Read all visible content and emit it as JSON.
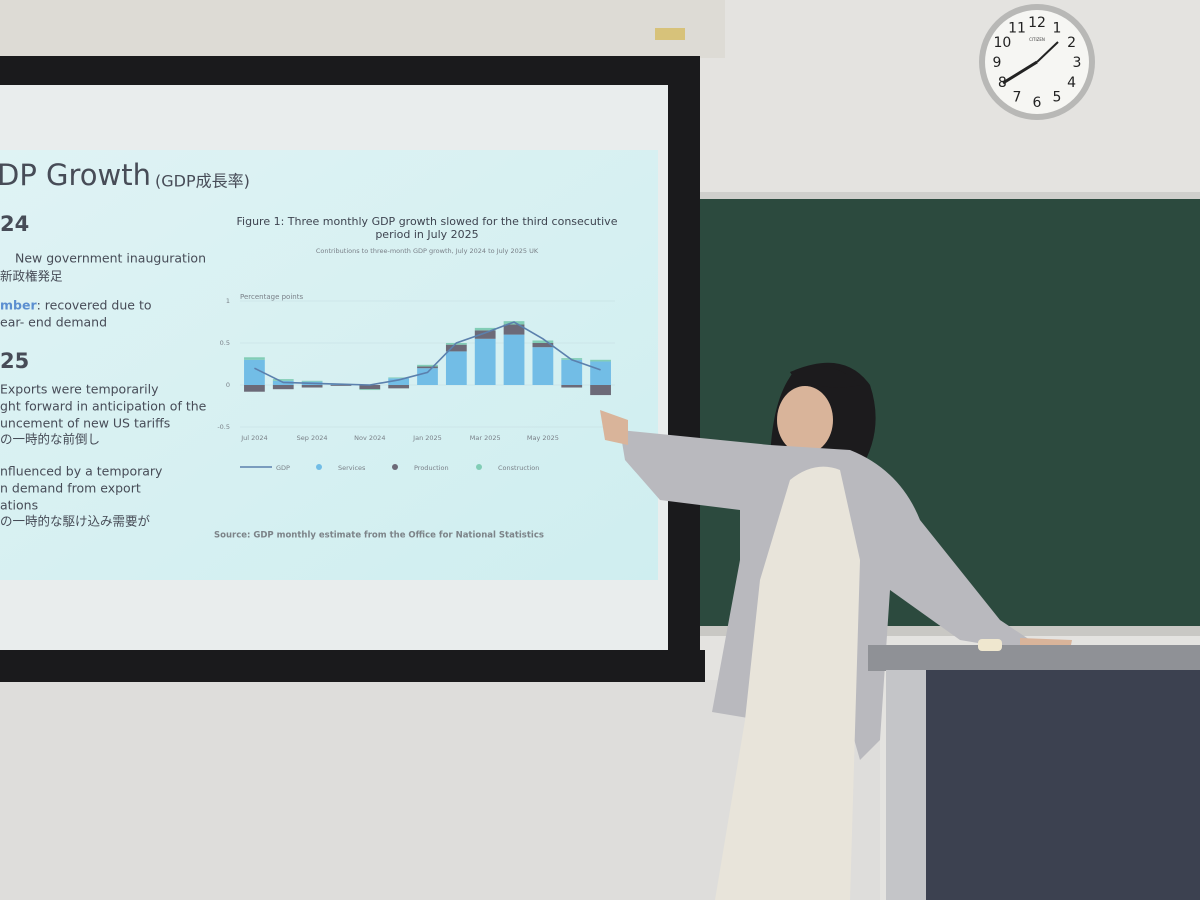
{
  "slide": {
    "title": "DP Growth",
    "title_note": "(GDP成長率)",
    "lines": [
      {
        "text": "24",
        "kind": "heading"
      },
      {
        "text": "New government inauguration",
        "kind": "item"
      },
      {
        "text": "新政権発足",
        "kind": "item"
      },
      {
        "text": "mber",
        "kind": "accent"
      },
      {
        "text": ": recovered due to",
        "kind": "item"
      },
      {
        "text": "ear- end demand",
        "kind": "item"
      },
      {
        "text": "25",
        "kind": "heading"
      },
      {
        "text": "Exports were temporarily",
        "kind": "item"
      },
      {
        "text": "ght forward in anticipation of the",
        "kind": "item"
      },
      {
        "text": "uncement of new US tariffs",
        "kind": "item"
      },
      {
        "text": "の一時的な前倒し",
        "kind": "item"
      },
      {
        "text": "nfluenced by a temporary",
        "kind": "item"
      },
      {
        "text": "n demand from export",
        "kind": "item"
      },
      {
        "text": "ations",
        "kind": "item"
      },
      {
        "text": "の一時的な駆け込み需要が",
        "kind": "item"
      }
    ],
    "source": "Source: GDP monthly estimate from the Office for National Statistics"
  },
  "chart_data": {
    "type": "stacked-bar-line",
    "title": "Figure 1: Three monthly GDP growth slowed for the third consecutive",
    "title_line2": "period in July 2025",
    "subtitle": "Contributions to three-month GDP growth, July 2024 to July 2025 UK",
    "y_label": "Percentage points",
    "categories": [
      "Jul 2024",
      null,
      "Sep 2024",
      null,
      "Nov 2024",
      null,
      "Jan 2025",
      null,
      "Mar 2025",
      null,
      "May 2025",
      null,
      null
    ],
    "ylim": [
      -0.5,
      1
    ],
    "yticks": [
      1,
      0.5,
      0,
      -0.5
    ],
    "grid": true,
    "series": [
      {
        "name": "GDP",
        "kind": "line",
        "color": "#5b80ad",
        "values": [
          0.2,
          0.03,
          0.02,
          0.01,
          0,
          0.06,
          0.15,
          0.5,
          0.62,
          0.75,
          0.55,
          0.3,
          0.18
        ]
      },
      {
        "name": "Services",
        "kind": "bar",
        "color": "#72bde6",
        "values": [
          0.3,
          0.05,
          0.04,
          0.01,
          0,
          0.08,
          0.2,
          0.4,
          0.55,
          0.6,
          0.45,
          0.3,
          0.28
        ]
      },
      {
        "name": "Production",
        "kind": "bar",
        "color": "#6c6a78",
        "values": [
          -0.08,
          -0.05,
          -0.03,
          -0.01,
          -0.05,
          -0.04,
          0.02,
          0.08,
          0.1,
          0.12,
          0.05,
          -0.03,
          -0.12
        ]
      },
      {
        "name": "Construction",
        "kind": "bar",
        "color": "#82cdb6",
        "values": [
          0.03,
          0.02,
          0.01,
          0,
          -0.01,
          0.01,
          0.02,
          0.02,
          0.03,
          0.04,
          0.03,
          0.02,
          0.02
        ]
      }
    ]
  },
  "clock": {
    "brand": "CITIZEN",
    "numerals": [
      "12",
      "1",
      "2",
      "3",
      "4",
      "5",
      "6",
      "7",
      "8",
      "9",
      "10",
      "11"
    ]
  }
}
